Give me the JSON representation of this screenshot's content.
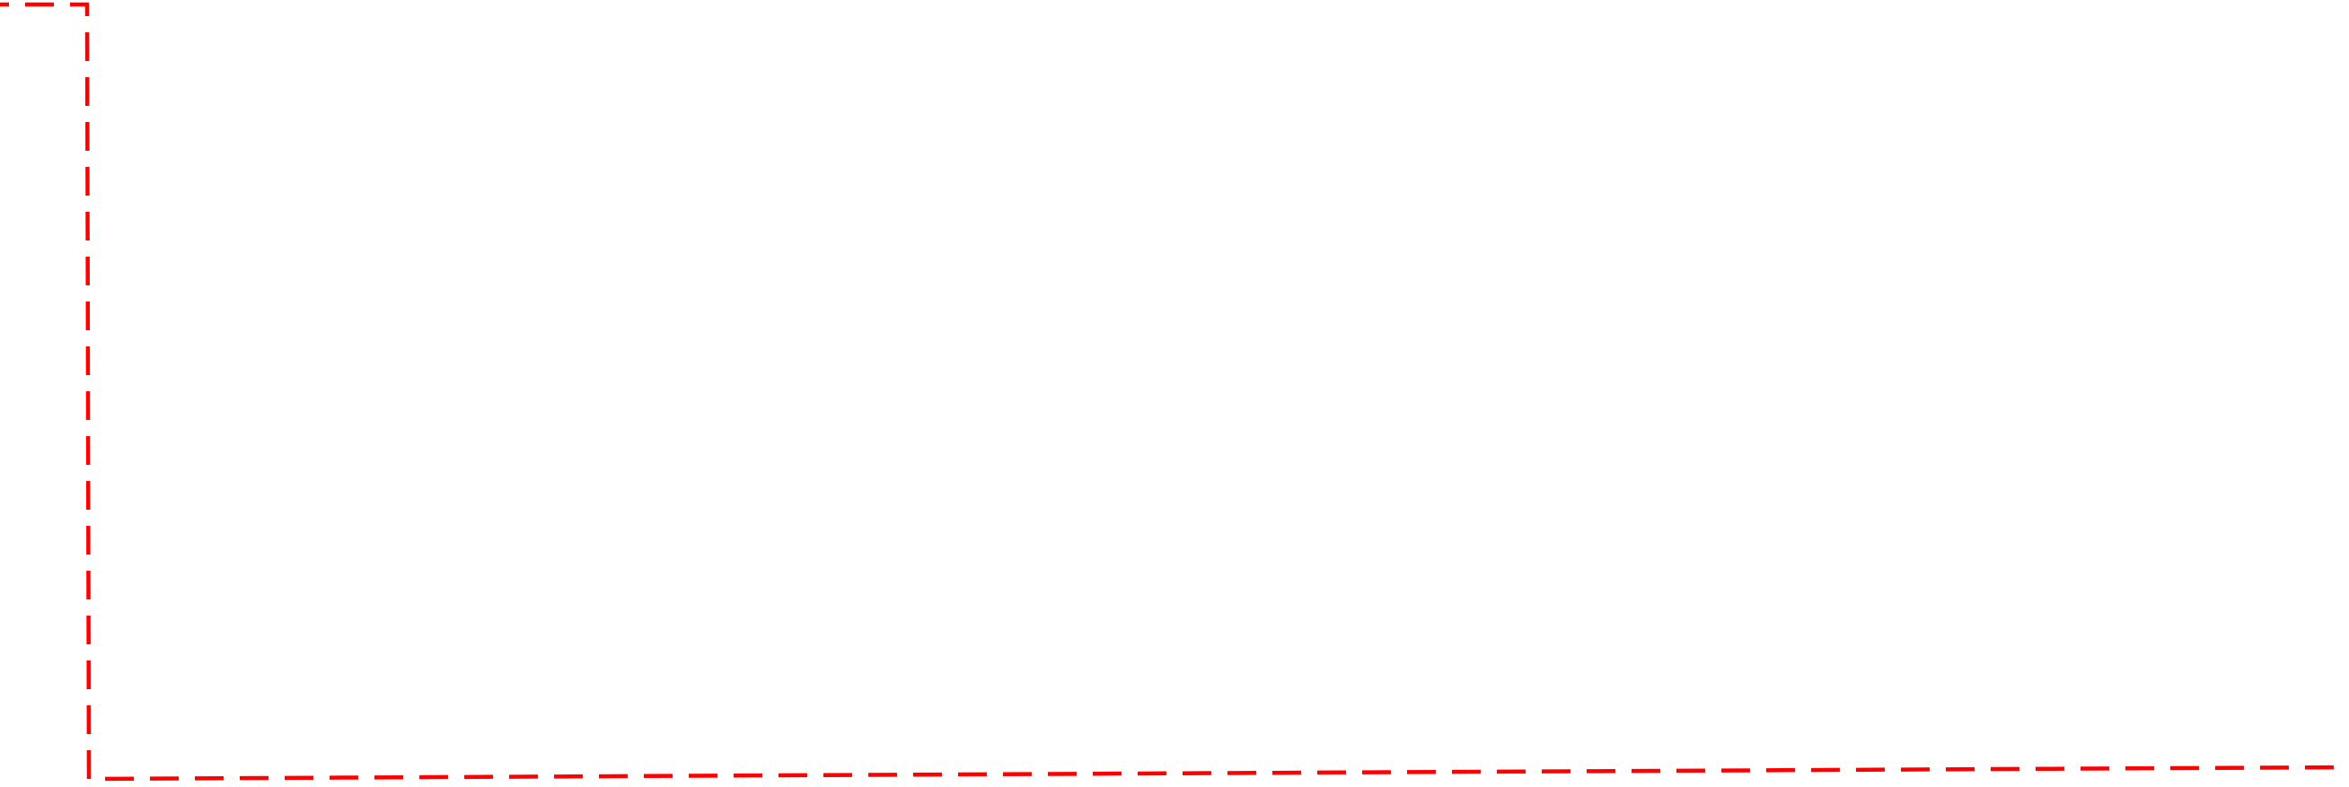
{
  "line": {
    "color": "#ff0000",
    "style": "dashed"
  }
}
